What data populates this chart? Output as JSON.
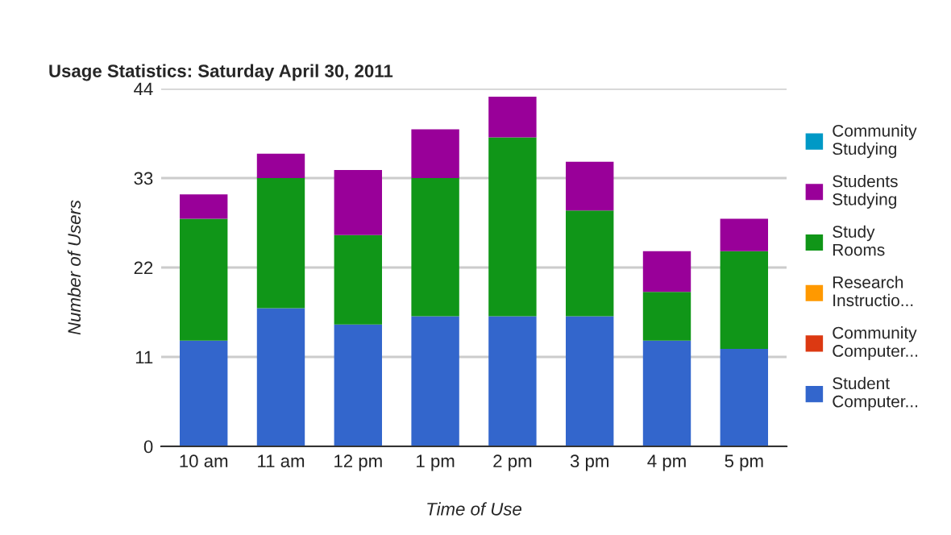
{
  "chart_data": {
    "type": "bar",
    "stacked": true,
    "title": "Usage Statistics: Saturday April 30, 2011",
    "xlabel": "Time of Use",
    "ylabel": "Number of Users",
    "categories": [
      "10 am",
      "11 am",
      "12 pm",
      "1 pm",
      "2 pm",
      "3 pm",
      "4 pm",
      "5 pm"
    ],
    "series": [
      {
        "name": "Student Computer...",
        "color": "#3366cc",
        "values": [
          13,
          17,
          15,
          16,
          16,
          16,
          13,
          12
        ]
      },
      {
        "name": "Community Computer...",
        "color": "#dc3912",
        "values": [
          0,
          0,
          0,
          0,
          0,
          0,
          0,
          0
        ]
      },
      {
        "name": "Research Instructio...",
        "color": "#ff9900",
        "values": [
          0,
          0,
          0,
          0,
          0,
          0,
          0,
          0
        ]
      },
      {
        "name": "Study Rooms",
        "color": "#109618",
        "values": [
          15,
          16,
          11,
          17,
          22,
          13,
          6,
          12
        ]
      },
      {
        "name": "Students Studying",
        "color": "#990099",
        "values": [
          3,
          3,
          8,
          6,
          5,
          6,
          5,
          4
        ]
      },
      {
        "name": "Community Studying",
        "color": "#0099c6",
        "values": [
          0,
          0,
          0,
          0,
          0,
          0,
          0,
          0
        ]
      }
    ],
    "ylim": [
      0,
      44
    ],
    "yticks": [
      0,
      11,
      22,
      33,
      44
    ],
    "grid": "y",
    "legend": "right"
  }
}
